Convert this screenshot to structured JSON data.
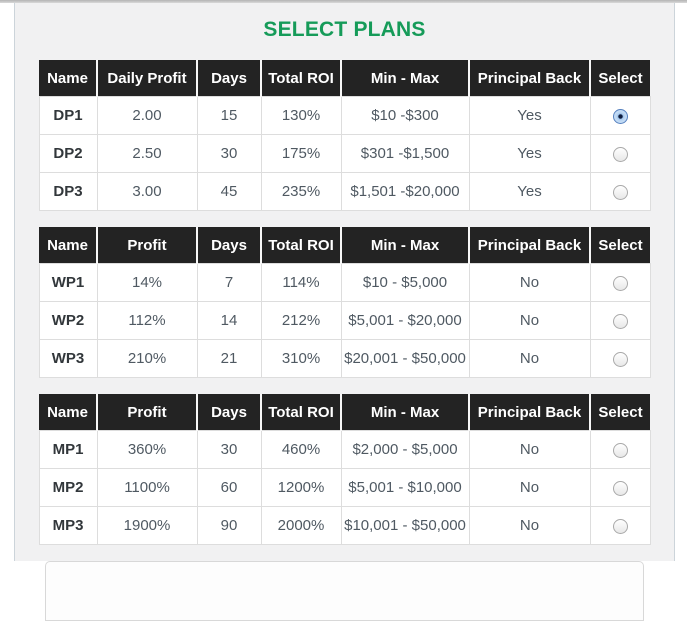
{
  "page": {
    "title": "SELECT PLANS"
  },
  "theme": {
    "title_green": "#169b59",
    "table_header_bg": "#232323",
    "table_header_text": "#ffffff",
    "panel_bg": "#f1f1f2",
    "cell_text": "#4f5962",
    "cell_border": "#dddddd",
    "radio_selected_blue": "#5580bf"
  },
  "tables": [
    {
      "name": "daily-plans-table",
      "headers": [
        "Name",
        "Daily Profit",
        "Days",
        "Total ROI",
        "Min - Max",
        "Principal Back",
        "Select"
      ],
      "rows": [
        {
          "name": "DP1",
          "profit": "2.00",
          "days": "15",
          "total_roi": "130%",
          "min_max": "$10 -$300",
          "principal_back": "Yes",
          "selected": true
        },
        {
          "name": "DP2",
          "profit": "2.50",
          "days": "30",
          "total_roi": "175%",
          "min_max": "$301 -$1,500",
          "principal_back": "Yes",
          "selected": false
        },
        {
          "name": "DP3",
          "profit": "3.00",
          "days": "45",
          "total_roi": "235%",
          "min_max": "$1,501 -$20,000",
          "principal_back": "Yes",
          "selected": false
        }
      ]
    },
    {
      "name": "weekly-plans-table",
      "headers": [
        "Name",
        "Profit",
        "Days",
        "Total ROI",
        "Min - Max",
        "Principal Back",
        "Select"
      ],
      "rows": [
        {
          "name": "WP1",
          "profit": "14%",
          "days": "7",
          "total_roi": "114%",
          "min_max": "$10 - $5,000",
          "principal_back": "No",
          "selected": false
        },
        {
          "name": "WP2",
          "profit": "112%",
          "days": "14",
          "total_roi": "212%",
          "min_max": "$5,001 - $20,000",
          "principal_back": "No",
          "selected": false
        },
        {
          "name": "WP3",
          "profit": "210%",
          "days": "21",
          "total_roi": "310%",
          "min_max": "$20,001 - $50,000",
          "principal_back": "No",
          "selected": false
        }
      ]
    },
    {
      "name": "monthly-plans-table",
      "headers": [
        "Name",
        "Profit",
        "Days",
        "Total ROI",
        "Min - Max",
        "Principal Back",
        "Select"
      ],
      "rows": [
        {
          "name": "MP1",
          "profit": "360%",
          "days": "30",
          "total_roi": "460%",
          "min_max": "$2,000 - $5,000",
          "principal_back": "No",
          "selected": false
        },
        {
          "name": "MP2",
          "profit": "1100%",
          "days": "60",
          "total_roi": "1200%",
          "min_max": "$5,001 - $10,000",
          "principal_back": "No",
          "selected": false
        },
        {
          "name": "MP3",
          "profit": "1900%",
          "days": "90",
          "total_roi": "2000%",
          "min_max": "$10,001 - $50,000",
          "principal_back": "No",
          "selected": false
        }
      ]
    }
  ]
}
